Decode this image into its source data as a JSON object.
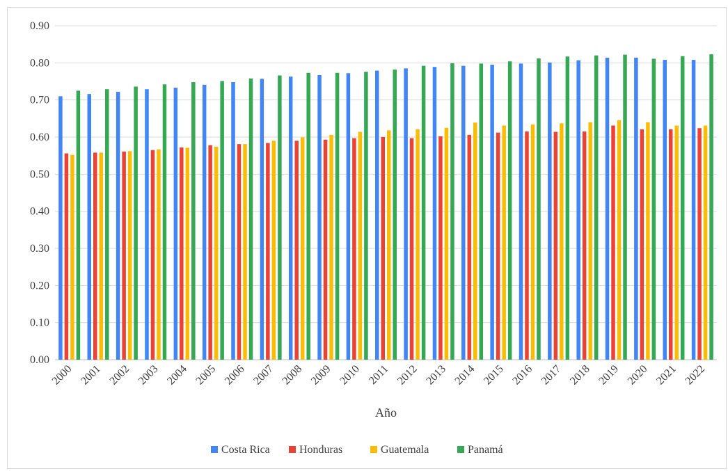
{
  "chart_data": {
    "type": "bar",
    "xlabel": "Año",
    "ylabel": "",
    "ylim": [
      0,
      0.9
    ],
    "y_ticks": [
      "0.00",
      "0.10",
      "0.20",
      "0.30",
      "0.40",
      "0.50",
      "0.60",
      "0.70",
      "0.80",
      "0.90"
    ],
    "grid": true,
    "legend_position": "bottom",
    "categories": [
      "2000",
      "2001",
      "2002",
      "2003",
      "2004",
      "2005",
      "2006",
      "2007",
      "2008",
      "2009",
      "2010",
      "2011",
      "2012",
      "2013",
      "2014",
      "2015",
      "2016",
      "2017",
      "2018",
      "2019",
      "2020",
      "2021",
      "2022"
    ],
    "series": [
      {
        "name": "Costa Rica",
        "color": "#4285F4",
        "values": [
          0.71,
          0.716,
          0.722,
          0.729,
          0.733,
          0.741,
          0.748,
          0.757,
          0.763,
          0.767,
          0.772,
          0.779,
          0.785,
          0.789,
          0.792,
          0.795,
          0.798,
          0.801,
          0.807,
          0.814,
          0.814,
          0.808,
          0.808
        ]
      },
      {
        "name": "Honduras",
        "color": "#EA4335",
        "values": [
          0.556,
          0.558,
          0.561,
          0.565,
          0.572,
          0.578,
          0.581,
          0.584,
          0.59,
          0.593,
          0.597,
          0.6,
          0.597,
          0.602,
          0.606,
          0.612,
          0.615,
          0.614,
          0.615,
          0.631,
          0.621,
          0.621,
          0.624
        ]
      },
      {
        "name": "Guatemala",
        "color": "#FBBC04",
        "values": [
          0.552,
          0.558,
          0.562,
          0.567,
          0.571,
          0.574,
          0.581,
          0.59,
          0.599,
          0.606,
          0.614,
          0.618,
          0.621,
          0.625,
          0.639,
          0.631,
          0.634,
          0.637,
          0.64,
          0.645,
          0.64,
          0.631,
          0.631
        ]
      },
      {
        "name": "Panamá",
        "color": "#34A853",
        "values": [
          0.725,
          0.729,
          0.736,
          0.742,
          0.748,
          0.751,
          0.758,
          0.766,
          0.773,
          0.773,
          0.776,
          0.782,
          0.792,
          0.799,
          0.798,
          0.804,
          0.812,
          0.817,
          0.82,
          0.822,
          0.811,
          0.818,
          0.823
        ]
      }
    ]
  }
}
